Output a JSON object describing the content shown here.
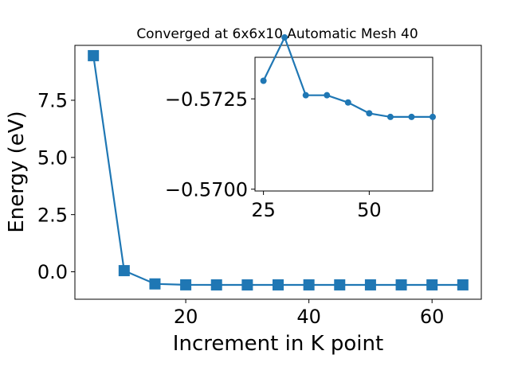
{
  "chart_data": [
    {
      "type": "line",
      "title": "Converged at 6x6x10 Automatic Mesh 40",
      "xlabel": "Increment in K point",
      "ylabel": "Energy (eV)",
      "xlim": [
        2,
        68
      ],
      "ylim": [
        -1.2,
        9.9
      ],
      "xticks": [
        20,
        40,
        60
      ],
      "yticks": [
        0.0,
        2.5,
        5.0,
        7.5
      ],
      "xtick_labels": [
        "20",
        "40",
        "60"
      ],
      "ytick_labels": [
        "0.0",
        "2.5",
        "5.0",
        "7.5"
      ],
      "marker": "square",
      "color": "#1f77b4",
      "series": [
        {
          "x": [
            5,
            10,
            15,
            20,
            25,
            30,
            35,
            40,
            45,
            50,
            55,
            60,
            65
          ],
          "y": [
            9.45,
            0.05,
            -0.53,
            -0.57,
            -0.573,
            -0.5742,
            -0.5726,
            -0.5726,
            -0.5724,
            -0.5721,
            -0.572,
            -0.572,
            -0.572
          ]
        }
      ]
    },
    {
      "type": "line",
      "inset": true,
      "xlim": [
        23,
        65
      ],
      "ylim": [
        -0.56995,
        -0.57365
      ],
      "xticks": [
        25,
        50
      ],
      "yticks": [
        -0.5725,
        -0.57
      ],
      "xtick_labels": [
        "25",
        "50"
      ],
      "ytick_labels": [
        "−0.5725",
        "−0.5700"
      ],
      "marker": "circle",
      "color": "#1f77b4",
      "series": [
        {
          "x": [
            25,
            30,
            35,
            40,
            45,
            50,
            55,
            60,
            65
          ],
          "y": [
            -0.573,
            -0.5742,
            -0.5726,
            -0.5726,
            -0.5724,
            -0.5721,
            -0.572,
            -0.572,
            -0.572
          ]
        }
      ]
    }
  ]
}
